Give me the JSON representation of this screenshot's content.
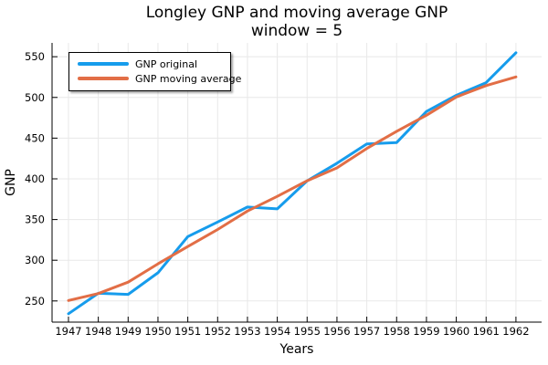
{
  "figure": {
    "title_line1": "Longley GNP and moving average GNP",
    "title_line2": "window = 5"
  },
  "chart_data": {
    "type": "line",
    "title": "Longley GNP and moving average GNP",
    "subtitle": "window = 5",
    "xlabel": "Years",
    "ylabel": "GNP",
    "x": [
      1947,
      1948,
      1949,
      1950,
      1951,
      1952,
      1953,
      1954,
      1955,
      1956,
      1957,
      1958,
      1959,
      1960,
      1961,
      1962
    ],
    "series": [
      {
        "name": "GNP original",
        "color": "#169CEC",
        "values": [
          234.289,
          259.426,
          258.054,
          284.599,
          328.975,
          346.999,
          365.385,
          363.112,
          397.469,
          419.18,
          442.769,
          444.546,
          482.704,
          502.601,
          518.173,
          554.894
        ]
      },
      {
        "name": "GNP moving average",
        "color": "#E26E46",
        "values": [
          250.59,
          259.092,
          273.069,
          295.611,
          316.802,
          337.814,
          360.388,
          378.429,
          397.583,
          413.415,
          437.334,
          458.36,
          478.159,
          500.584,
          514.593,
          525.223
        ]
      }
    ],
    "xticks": [
      1947,
      1948,
      1949,
      1950,
      1951,
      1952,
      1953,
      1954,
      1955,
      1956,
      1957,
      1958,
      1959,
      1960,
      1961,
      1962
    ],
    "yticks": [
      250,
      300,
      350,
      400,
      450,
      500,
      550
    ],
    "xlim": [
      1946.45,
      1962.86
    ],
    "ylim": [
      224,
      567
    ],
    "grid": true,
    "legend_position": "top-left",
    "colors": {
      "background": "#FFFFFF",
      "grid": "#E8E8E8",
      "axis": "#000000",
      "text": "#000000"
    }
  }
}
